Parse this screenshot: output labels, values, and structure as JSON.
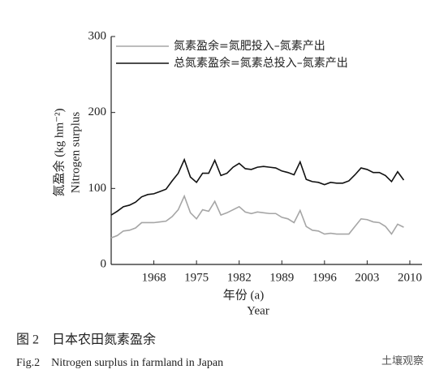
{
  "chart_data": {
    "type": "line",
    "y_label": "氮盈余 (kg hm⁻²)",
    "y_label_en": "Nitrogen surplus",
    "x_label": "年份 (a)",
    "x_label_en": "Year",
    "x": [
      1961,
      1962,
      1963,
      1964,
      1965,
      1966,
      1967,
      1968,
      1969,
      1970,
      1971,
      1972,
      1973,
      1974,
      1975,
      1976,
      1977,
      1978,
      1979,
      1980,
      1981,
      1982,
      1983,
      1984,
      1985,
      1986,
      1987,
      1988,
      1989,
      1990,
      1991,
      1992,
      1993,
      1994,
      1995,
      1996,
      1997,
      1998,
      1999,
      2000,
      2001,
      2002,
      2003,
      2004,
      2005,
      2006,
      2007,
      2008,
      2009
    ],
    "series": [
      {
        "name": "氮素盈余=氮肥投入–氮素产出",
        "color": "#a6a6a6",
        "values": [
          35,
          38,
          44,
          45,
          48,
          55,
          55,
          55,
          56,
          57,
          63,
          72,
          90,
          68,
          60,
          72,
          70,
          83,
          65,
          68,
          72,
          76,
          69,
          67,
          69,
          68,
          67,
          67,
          62,
          60,
          55,
          71,
          50,
          45,
          44,
          40,
          41,
          40,
          40,
          40,
          50,
          60,
          59,
          56,
          55,
          50,
          40,
          53,
          49
        ]
      },
      {
        "name": "总氮素盈余=氮素总投入–氮素产出",
        "color": "#111111",
        "values": [
          65,
          70,
          76,
          78,
          82,
          89,
          92,
          93,
          96,
          99,
          110,
          120,
          138,
          115,
          108,
          120,
          120,
          137,
          117,
          120,
          128,
          133,
          126,
          125,
          128,
          129,
          128,
          127,
          123,
          121,
          118,
          135,
          112,
          109,
          108,
          105,
          108,
          107,
          107,
          110,
          118,
          127,
          125,
          121,
          121,
          117,
          109,
          122,
          111
        ]
      }
    ],
    "xlim": [
      1961,
      2012
    ],
    "xticks": [
      1968,
      1975,
      1982,
      1989,
      1996,
      2003,
      2010
    ],
    "ylim": [
      0,
      300
    ],
    "yticks": [
      0,
      100,
      200,
      300
    ],
    "caption": "图 2　日本农田氮素盈余",
    "caption_en": "Fig.2　Nitrogen surplus in farmland in Japan",
    "watermark": "土壤观察"
  }
}
